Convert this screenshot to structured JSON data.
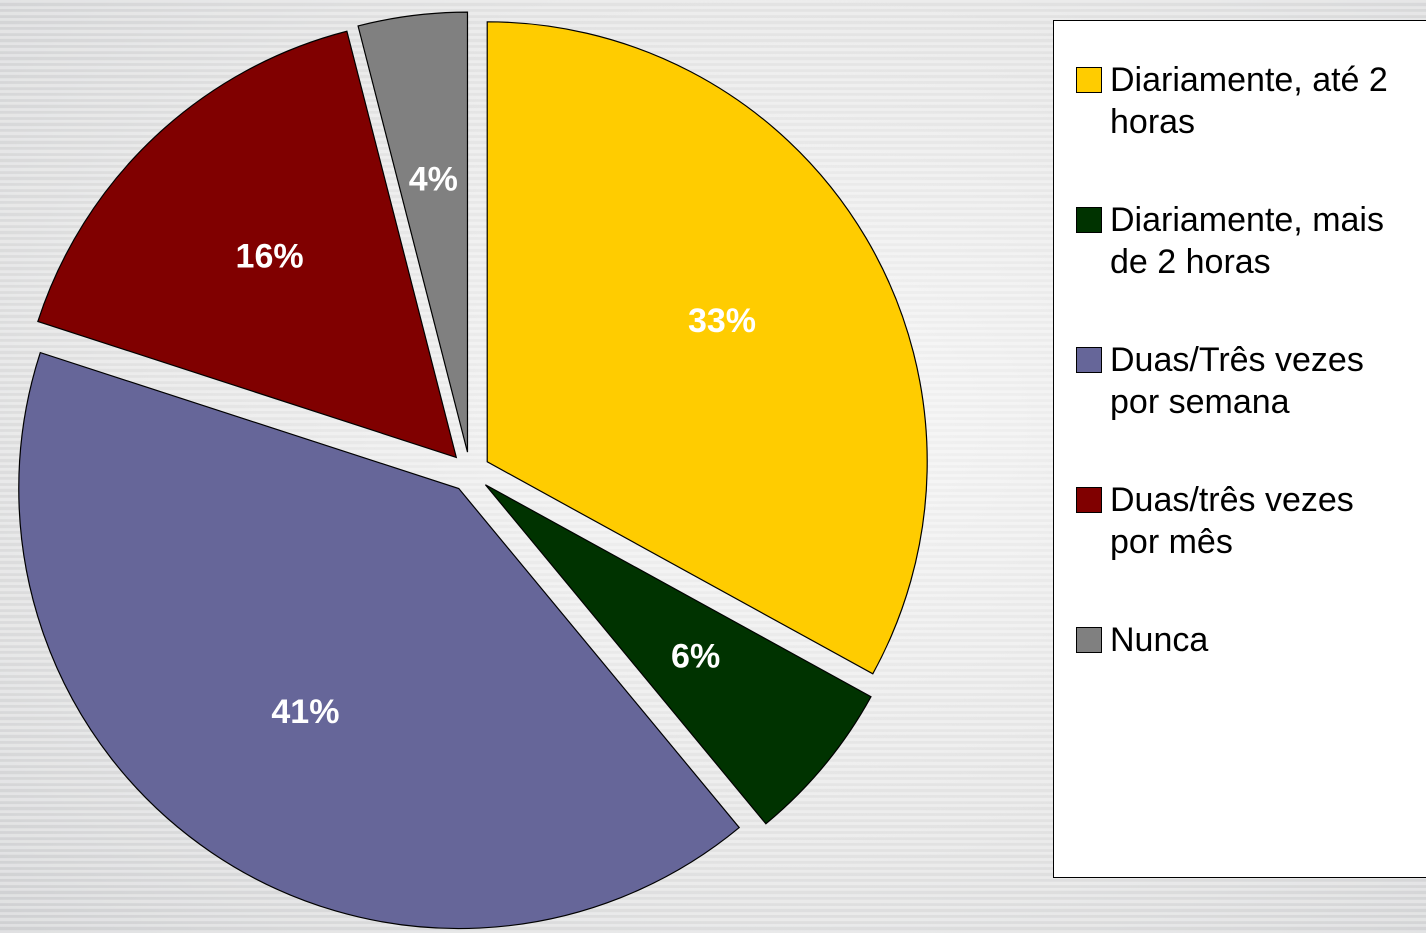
{
  "chart_data": {
    "type": "pie",
    "categories": [
      "Diariamente, até 2 horas",
      "Diariamente, mais de 2 horas",
      "Duas/Três vezes por semana",
      "Duas/três vezes por mês",
      "Nunca"
    ],
    "values": [
      33,
      6,
      41,
      16,
      4
    ],
    "value_labels": [
      "33%",
      "6%",
      "41%",
      "16%",
      "4%"
    ],
    "colors": [
      "#FFCC00",
      "#003300",
      "#666699",
      "#800000",
      "#808080"
    ],
    "legend": "right"
  }
}
